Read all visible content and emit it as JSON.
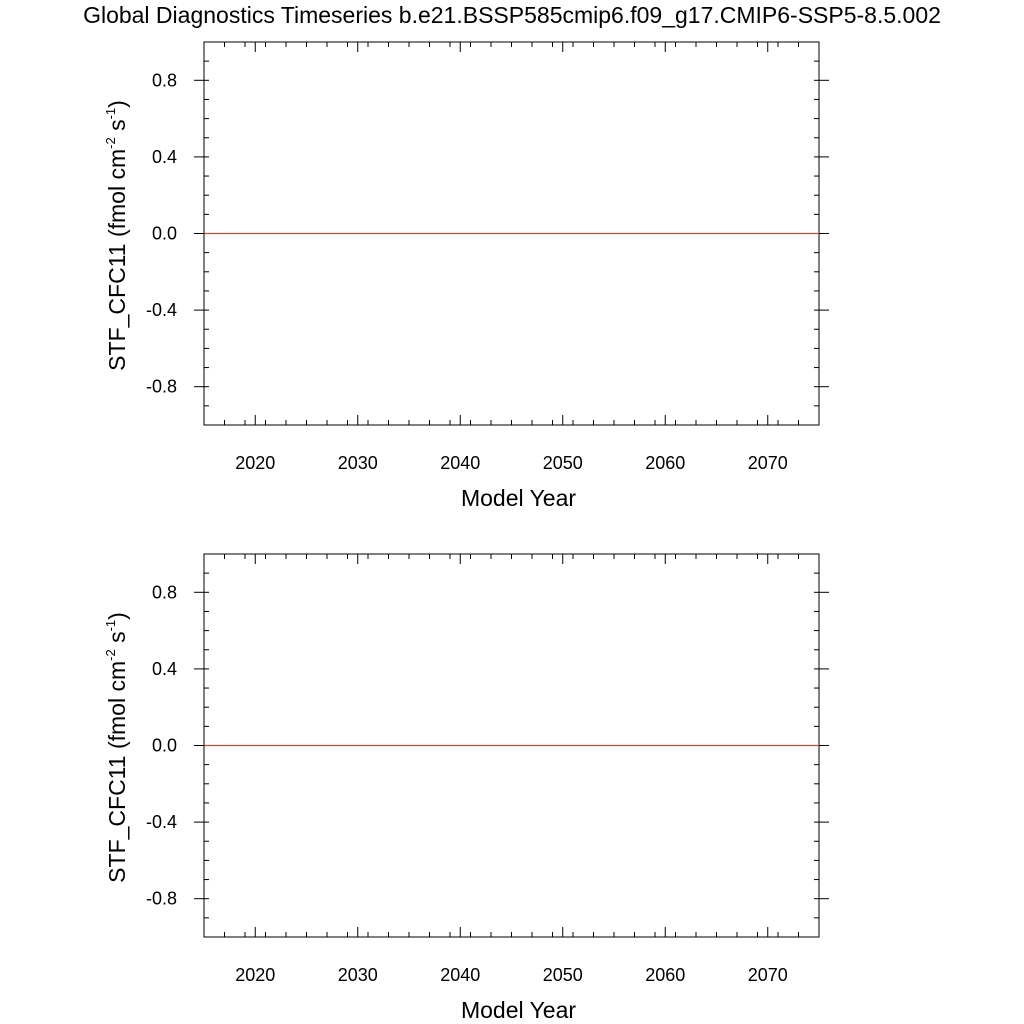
{
  "title": "Global Diagnostics Timeseries b.e21.BSSP585cmip6.f09_g17.CMIP6-SSP5-8.5.002",
  "series_color": "#b5503a",
  "chart_data": [
    {
      "type": "line",
      "xlabel": "Model Year",
      "ylabel": {
        "main": "STF_CFC11 (fmol cm",
        "sup1": "-2",
        "mid": " s",
        "sup2": "-1",
        "end": ")"
      },
      "xlim": [
        2015,
        2075
      ],
      "ylim": [
        -1.0,
        1.0
      ],
      "x_ticks": [
        2020,
        2030,
        2040,
        2050,
        2060,
        2070
      ],
      "x_tick_labels": [
        "2020",
        "2030",
        "2040",
        "2050",
        "2060",
        "2070"
      ],
      "y_ticks": [
        0.8,
        0.4,
        0.0,
        -0.4,
        -0.8
      ],
      "y_tick_labels": [
        "0.8",
        "0.4",
        "0.0",
        "-0.4",
        "-0.8"
      ],
      "x_minor_step": 2,
      "y_minor_step": 0.1,
      "grid": false,
      "series": [
        {
          "x": [
            2015,
            2075
          ],
          "values": [
            0.0,
            0.0
          ]
        }
      ]
    },
    {
      "type": "line",
      "xlabel": "Model Year",
      "ylabel": {
        "main": "STF_CFC11 (fmol cm",
        "sup1": "-2",
        "mid": " s",
        "sup2": "-1",
        "end": ")"
      },
      "xlim": [
        2015,
        2075
      ],
      "ylim": [
        -1.0,
        1.0
      ],
      "x_ticks": [
        2020,
        2030,
        2040,
        2050,
        2060,
        2070
      ],
      "x_tick_labels": [
        "2020",
        "2030",
        "2040",
        "2050",
        "2060",
        "2070"
      ],
      "y_ticks": [
        0.8,
        0.4,
        0.0,
        -0.4,
        -0.8
      ],
      "y_tick_labels": [
        "0.8",
        "0.4",
        "0.0",
        "-0.4",
        "-0.8"
      ],
      "x_minor_step": 2,
      "y_minor_step": 0.1,
      "grid": false,
      "series": [
        {
          "x": [
            2015,
            2075
          ],
          "values": [
            0.0,
            0.0
          ]
        }
      ]
    }
  ]
}
